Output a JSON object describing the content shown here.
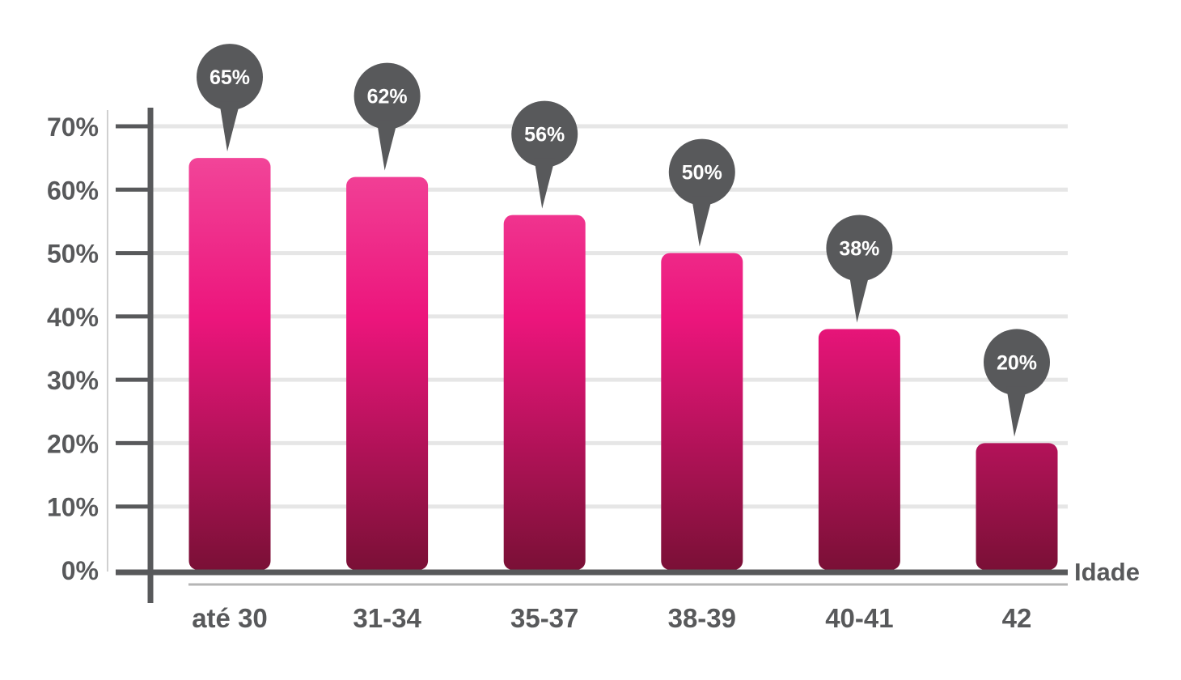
{
  "chart_data": {
    "type": "bar",
    "categories": [
      "até 30",
      "31-34",
      "35-37",
      "38-39",
      "40-41",
      "42"
    ],
    "values": [
      65,
      62,
      56,
      50,
      38,
      20
    ],
    "data_labels": [
      "65%",
      "62%",
      "56%",
      "50%",
      "38%",
      "20%"
    ],
    "yticks": [
      "0%",
      "10%",
      "20%",
      "30%",
      "40%",
      "50%",
      "60%",
      "70%"
    ],
    "ylim": [
      0,
      70
    ],
    "xlabel": "Idade",
    "ylabel": "",
    "grid": true,
    "colors": {
      "bar_top": "#f2479a",
      "bar_mid": "#ec157c",
      "bar_bottom": "#7a1036",
      "callout": "#58595b",
      "gridline": "#e6e6e6",
      "axis": "#58595b"
    }
  }
}
